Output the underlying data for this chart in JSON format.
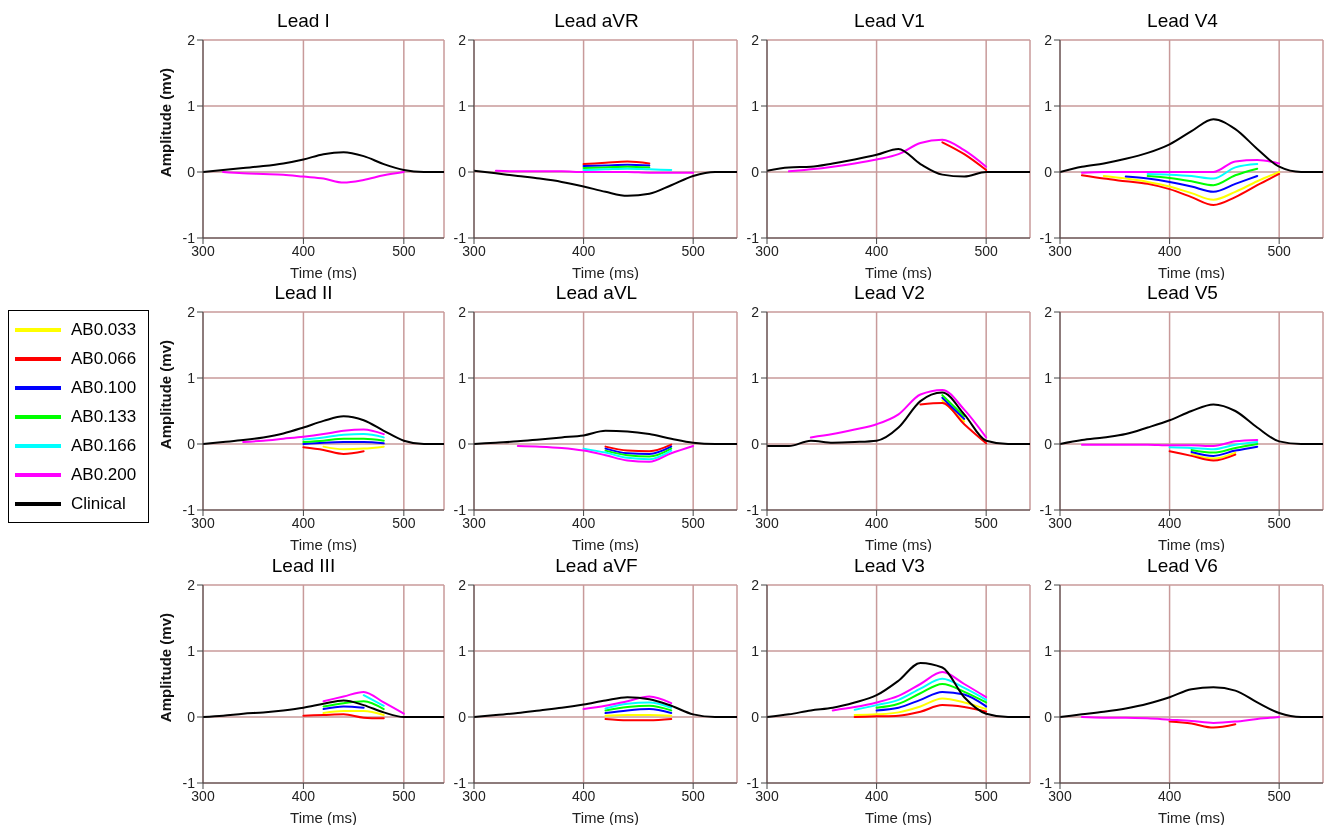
{
  "chart_data": [
    {
      "type": "line",
      "title": "Lead I",
      "xlabel": "Time (ms)",
      "ylabel": "Amplitude (mv)",
      "x": [
        300,
        320,
        340,
        360,
        380,
        400,
        420,
        440,
        460,
        480,
        500,
        520,
        540
      ],
      "xlim": [
        300,
        540
      ],
      "xticks": [
        300,
        400,
        500
      ],
      "ylim": [
        -1,
        2
      ],
      "yticks": [
        -1,
        0,
        1,
        2
      ],
      "grid": true,
      "legend": "left",
      "series": [
        {
          "name": "AB0.033",
          "color": "#ffff00",
          "values": [
            null,
            null,
            null,
            null,
            null,
            null,
            null,
            null,
            null,
            null,
            null,
            null,
            null
          ]
        },
        {
          "name": "AB0.066",
          "color": "#ff0000",
          "values": [
            null,
            null,
            null,
            null,
            null,
            null,
            null,
            null,
            null,
            null,
            null,
            null,
            null
          ]
        },
        {
          "name": "AB0.100",
          "color": "#0000ff",
          "values": [
            null,
            null,
            null,
            null,
            null,
            null,
            null,
            null,
            null,
            null,
            null,
            null,
            null
          ]
        },
        {
          "name": "AB0.133",
          "color": "#00ff00",
          "values": [
            null,
            null,
            null,
            null,
            null,
            null,
            null,
            null,
            null,
            null,
            null,
            null,
            null
          ]
        },
        {
          "name": "AB0.166",
          "color": "#00ffff",
          "values": [
            null,
            null,
            null,
            null,
            null,
            null,
            null,
            null,
            null,
            null,
            null,
            null,
            null
          ]
        },
        {
          "name": "AB0.200",
          "color": "#ff00ff",
          "values": [
            null,
            0,
            -0.02,
            -0.03,
            -0.04,
            -0.07,
            -0.1,
            -0.16,
            -0.12,
            -0.05,
            0,
            null,
            null
          ]
        },
        {
          "name": "Clinical",
          "color": "#000000",
          "values": [
            0,
            0.03,
            0.06,
            0.09,
            0.13,
            0.19,
            0.27,
            0.3,
            0.24,
            0.12,
            0.03,
            0,
            0
          ]
        }
      ]
    },
    {
      "type": "line",
      "title": "Lead aVR",
      "xlabel": "Time (ms)",
      "x": [
        300,
        320,
        340,
        360,
        380,
        400,
        420,
        440,
        460,
        480,
        500,
        520,
        540
      ],
      "xlim": [
        300,
        540
      ],
      "xticks": [
        300,
        400,
        500
      ],
      "ylim": [
        -1,
        2
      ],
      "yticks": [
        -1,
        0,
        1,
        2
      ],
      "grid": true,
      "series": [
        {
          "color": "#ffff00",
          "values": [
            null,
            null,
            null,
            null,
            null,
            null,
            null,
            null,
            null,
            null,
            null,
            null,
            null
          ]
        },
        {
          "color": "#ff0000",
          "values": [
            null,
            null,
            null,
            null,
            null,
            0.12,
            0.14,
            0.16,
            0.13,
            null,
            null,
            null,
            null
          ]
        },
        {
          "color": "#0000ff",
          "values": [
            null,
            null,
            null,
            null,
            null,
            0.09,
            0.1,
            0.11,
            0.1,
            null,
            null,
            null,
            null
          ]
        },
        {
          "color": "#00ff00",
          "values": [
            null,
            null,
            null,
            null,
            null,
            0.06,
            0.07,
            0.08,
            0.07,
            null,
            null,
            null,
            null
          ]
        },
        {
          "color": "#00ffff",
          "values": [
            null,
            null,
            null,
            null,
            null,
            0.03,
            0.04,
            0.05,
            0.04,
            0.03,
            null,
            null,
            null
          ]
        },
        {
          "color": "#ff00ff",
          "values": [
            null,
            0.02,
            0.01,
            0.01,
            0.01,
            0,
            0,
            0,
            -0.01,
            -0.01,
            -0.01,
            null,
            null
          ]
        },
        {
          "color": "#000000",
          "values": [
            0.02,
            -0.02,
            -0.06,
            -0.1,
            -0.15,
            -0.22,
            -0.3,
            -0.36,
            -0.33,
            -0.2,
            -0.06,
            0,
            0
          ]
        }
      ]
    },
    {
      "type": "line",
      "title": "Lead V1",
      "xlabel": "Time (ms)",
      "x": [
        300,
        320,
        340,
        360,
        380,
        400,
        420,
        440,
        460,
        480,
        500,
        520,
        540
      ],
      "xlim": [
        300,
        540
      ],
      "xticks": [
        300,
        400,
        500
      ],
      "ylim": [
        -1,
        2
      ],
      "yticks": [
        -1,
        0,
        1,
        2
      ],
      "grid": true,
      "series": [
        {
          "color": "#ffff00",
          "values": [
            null,
            null,
            null,
            null,
            null,
            null,
            null,
            null,
            null,
            null,
            null,
            null,
            null
          ]
        },
        {
          "color": "#ff0000",
          "values": [
            null,
            null,
            null,
            null,
            null,
            null,
            null,
            null,
            0.45,
            0.27,
            0.03,
            null,
            null
          ]
        },
        {
          "color": "#0000ff",
          "values": [
            null,
            null,
            null,
            null,
            null,
            null,
            null,
            null,
            null,
            null,
            null,
            null,
            null
          ]
        },
        {
          "color": "#00ff00",
          "values": [
            null,
            null,
            null,
            null,
            null,
            null,
            null,
            null,
            null,
            null,
            null,
            null,
            null
          ]
        },
        {
          "color": "#00ffff",
          "values": [
            null,
            null,
            null,
            null,
            null,
            null,
            null,
            null,
            null,
            null,
            null,
            null,
            null
          ]
        },
        {
          "color": "#ff00ff",
          "values": [
            null,
            0.01,
            0.04,
            0.08,
            0.13,
            0.19,
            0.27,
            0.44,
            0.49,
            0.33,
            0.08,
            null,
            null
          ]
        },
        {
          "color": "#000000",
          "values": [
            0.02,
            0.07,
            0.08,
            0.13,
            0.19,
            0.26,
            0.35,
            0.12,
            -0.04,
            -0.07,
            0,
            0,
            0
          ]
        }
      ]
    },
    {
      "type": "line",
      "title": "Lead V4",
      "xlabel": "Time (ms)",
      "x": [
        300,
        320,
        340,
        360,
        380,
        400,
        420,
        440,
        460,
        480,
        500,
        520,
        540
      ],
      "xlim": [
        300,
        540
      ],
      "xticks": [
        300,
        400,
        500
      ],
      "ylim": [
        -1,
        2
      ],
      "yticks": [
        -1,
        0,
        1,
        2
      ],
      "grid": true,
      "series": [
        {
          "color": "#ffff00",
          "values": [
            null,
            null,
            -0.06,
            -0.1,
            -0.15,
            -0.22,
            -0.32,
            -0.42,
            -0.3,
            -0.14,
            0,
            null,
            null
          ]
        },
        {
          "color": "#ff0000",
          "values": [
            null,
            -0.05,
            -0.1,
            -0.14,
            -0.18,
            -0.26,
            -0.38,
            -0.5,
            -0.38,
            -0.2,
            -0.03,
            null,
            null
          ]
        },
        {
          "color": "#0000ff",
          "values": [
            null,
            null,
            null,
            -0.07,
            -0.1,
            -0.15,
            -0.22,
            -0.3,
            -0.18,
            -0.06,
            null,
            null,
            null
          ]
        },
        {
          "color": "#00ff00",
          "values": [
            null,
            null,
            null,
            null,
            -0.06,
            -0.09,
            -0.14,
            -0.2,
            -0.05,
            0.05,
            null,
            null,
            null
          ]
        },
        {
          "color": "#00ffff",
          "values": [
            null,
            null,
            null,
            null,
            -0.03,
            -0.04,
            -0.06,
            -0.1,
            0.07,
            0.12,
            null,
            null,
            null
          ]
        },
        {
          "color": "#ff00ff",
          "values": [
            null,
            -0.01,
            0,
            0,
            0,
            0,
            0,
            0,
            0.16,
            0.18,
            0.13,
            null,
            null
          ]
        },
        {
          "color": "#000000",
          "values": [
            0,
            0.08,
            0.13,
            0.2,
            0.29,
            0.42,
            0.62,
            0.8,
            0.65,
            0.35,
            0.08,
            0,
            0
          ]
        }
      ]
    },
    {
      "type": "line",
      "title": "Lead II",
      "xlabel": "Time (ms)",
      "ylabel": "Amplitude (mv)",
      "x": [
        300,
        320,
        340,
        360,
        380,
        400,
        420,
        440,
        460,
        480,
        500,
        520,
        540
      ],
      "xlim": [
        300,
        540
      ],
      "xticks": [
        300,
        400,
        500
      ],
      "ylim": [
        -1,
        2
      ],
      "yticks": [
        -1,
        0,
        1,
        2
      ],
      "grid": true,
      "series": [
        {
          "color": "#ffff00",
          "values": [
            null,
            null,
            null,
            null,
            null,
            null,
            -0.04,
            -0.08,
            -0.07,
            -0.04,
            null,
            null,
            null
          ]
        },
        {
          "color": "#ff0000",
          "values": [
            null,
            null,
            null,
            null,
            null,
            -0.05,
            -0.09,
            -0.15,
            -0.11,
            null,
            null,
            null,
            null
          ]
        },
        {
          "color": "#0000ff",
          "values": [
            null,
            null,
            null,
            null,
            null,
            0,
            0.02,
            0.03,
            0.03,
            0.01,
            null,
            null,
            null
          ]
        },
        {
          "color": "#00ff00",
          "values": [
            null,
            null,
            null,
            null,
            null,
            0.03,
            0.05,
            0.08,
            0.08,
            0.05,
            null,
            null,
            null
          ]
        },
        {
          "color": "#00ffff",
          "values": [
            null,
            null,
            null,
            null,
            null,
            0.07,
            0.1,
            0.14,
            0.15,
            0.1,
            null,
            null,
            null
          ]
        },
        {
          "color": "#ff00ff",
          "values": [
            null,
            null,
            0.03,
            0.05,
            0.08,
            0.11,
            0.15,
            0.2,
            0.22,
            0.15,
            null,
            null,
            null
          ]
        },
        {
          "color": "#000000",
          "values": [
            0,
            0.03,
            0.06,
            0.1,
            0.16,
            0.25,
            0.35,
            0.42,
            0.36,
            0.2,
            0.05,
            0,
            0
          ]
        }
      ]
    },
    {
      "type": "line",
      "title": "Lead aVL",
      "xlabel": "Time (ms)",
      "x": [
        300,
        320,
        340,
        360,
        380,
        400,
        420,
        440,
        460,
        480,
        500,
        520,
        540
      ],
      "xlim": [
        300,
        540
      ],
      "xticks": [
        300,
        400,
        500
      ],
      "ylim": [
        -1,
        2
      ],
      "yticks": [
        -1,
        0,
        1,
        2
      ],
      "grid": true,
      "series": [
        {
          "color": "#ffff00",
          "values": [
            null,
            null,
            null,
            null,
            null,
            null,
            null,
            null,
            null,
            null,
            null,
            null,
            null
          ]
        },
        {
          "color": "#ff0000",
          "values": [
            null,
            null,
            null,
            null,
            null,
            null,
            -0.04,
            -0.1,
            -0.11,
            -0.01,
            null,
            null,
            null
          ]
        },
        {
          "color": "#0000ff",
          "values": [
            null,
            null,
            null,
            null,
            null,
            null,
            -0.07,
            -0.14,
            -0.15,
            -0.04,
            null,
            null,
            null
          ]
        },
        {
          "color": "#00ff00",
          "values": [
            null,
            null,
            null,
            null,
            null,
            null,
            -0.1,
            -0.17,
            -0.19,
            -0.07,
            null,
            null,
            null
          ]
        },
        {
          "color": "#00ffff",
          "values": [
            null,
            null,
            null,
            null,
            null,
            -0.07,
            -0.13,
            -0.21,
            -0.23,
            -0.1,
            null,
            null,
            null
          ]
        },
        {
          "color": "#ff00ff",
          "values": [
            null,
            null,
            -0.03,
            -0.04,
            -0.06,
            -0.1,
            -0.17,
            -0.25,
            -0.27,
            -0.14,
            -0.03,
            null,
            null
          ]
        },
        {
          "color": "#000000",
          "values": [
            0,
            0.02,
            0.04,
            0.07,
            0.1,
            0.13,
            0.2,
            0.19,
            0.15,
            0.08,
            0.02,
            0,
            0
          ]
        }
      ]
    },
    {
      "type": "line",
      "title": "Lead V2",
      "xlabel": "Time (ms)",
      "x": [
        300,
        320,
        340,
        360,
        380,
        400,
        420,
        440,
        460,
        480,
        500,
        520,
        540
      ],
      "xlim": [
        300,
        540
      ],
      "xticks": [
        300,
        400,
        500
      ],
      "ylim": [
        -1,
        2
      ],
      "yticks": [
        -1,
        0,
        1,
        2
      ],
      "grid": true,
      "series": [
        {
          "color": "#ffff00",
          "values": [
            null,
            null,
            null,
            null,
            null,
            null,
            null,
            null,
            0.66,
            0.34,
            null,
            null,
            null
          ]
        },
        {
          "color": "#ff0000",
          "values": [
            null,
            null,
            null,
            null,
            null,
            null,
            null,
            0.6,
            0.62,
            0.3,
            0.01,
            null,
            null
          ]
        },
        {
          "color": "#0000ff",
          "values": [
            null,
            null,
            null,
            null,
            null,
            null,
            null,
            null,
            0.7,
            0.38,
            null,
            null,
            null
          ]
        },
        {
          "color": "#00ff00",
          "values": [
            null,
            null,
            null,
            null,
            null,
            null,
            null,
            null,
            0.74,
            0.42,
            null,
            null,
            null
          ]
        },
        {
          "color": "#00ffff",
          "values": [
            null,
            null,
            null,
            null,
            null,
            null,
            null,
            null,
            null,
            null,
            null,
            null,
            null
          ]
        },
        {
          "color": "#ff00ff",
          "values": [
            null,
            null,
            0.1,
            0.15,
            0.22,
            0.3,
            0.45,
            0.75,
            0.82,
            0.52,
            0.1,
            null,
            null
          ]
        },
        {
          "color": "#000000",
          "values": [
            -0.03,
            -0.03,
            0.05,
            0.02,
            0.03,
            0.05,
            0.25,
            0.65,
            0.78,
            0.45,
            0.05,
            0,
            0
          ]
        }
      ]
    },
    {
      "type": "line",
      "title": "Lead V5",
      "xlabel": "Time (ms)",
      "x": [
        300,
        320,
        340,
        360,
        380,
        400,
        420,
        440,
        460,
        480,
        500,
        520,
        540
      ],
      "xlim": [
        300,
        540
      ],
      "xticks": [
        300,
        400,
        500
      ],
      "ylim": [
        -1,
        2
      ],
      "yticks": [
        -1,
        0,
        1,
        2
      ],
      "grid": true,
      "series": [
        {
          "color": "#ffff00",
          "values": [
            null,
            null,
            null,
            null,
            null,
            null,
            -0.15,
            -0.22,
            -0.13,
            null,
            null,
            null,
            null
          ]
        },
        {
          "color": "#ff0000",
          "values": [
            null,
            null,
            null,
            null,
            null,
            -0.11,
            -0.18,
            -0.25,
            -0.16,
            null,
            null,
            null,
            null
          ]
        },
        {
          "color": "#0000ff",
          "values": [
            null,
            null,
            null,
            null,
            null,
            null,
            -0.12,
            -0.18,
            -0.1,
            -0.04,
            null,
            null,
            null
          ]
        },
        {
          "color": "#00ff00",
          "values": [
            null,
            null,
            null,
            null,
            null,
            null,
            -0.09,
            -0.13,
            -0.06,
            0,
            null,
            null,
            null
          ]
        },
        {
          "color": "#00ffff",
          "values": [
            null,
            null,
            null,
            null,
            null,
            -0.05,
            -0.06,
            -0.08,
            -0.01,
            0.03,
            null,
            null,
            null
          ]
        },
        {
          "color": "#ff00ff",
          "values": [
            null,
            -0.01,
            -0.01,
            -0.01,
            -0.01,
            -0.02,
            -0.02,
            -0.03,
            0.04,
            0.06,
            null,
            null,
            null
          ]
        },
        {
          "color": "#000000",
          "values": [
            0,
            0.06,
            0.1,
            0.15,
            0.25,
            0.36,
            0.5,
            0.6,
            0.5,
            0.25,
            0.04,
            0,
            0
          ]
        }
      ]
    },
    {
      "type": "line",
      "title": "Lead III",
      "xlabel": "Time (ms)",
      "ylabel": "Amplitude (mv)",
      "x": [
        300,
        320,
        340,
        360,
        380,
        400,
        420,
        440,
        460,
        480,
        500,
        520,
        540
      ],
      "xlim": [
        300,
        540
      ],
      "xticks": [
        300,
        400,
        500
      ],
      "ylim": [
        -1,
        2
      ],
      "yticks": [
        -1,
        0,
        1,
        2
      ],
      "grid": true,
      "series": [
        {
          "color": "#ffff00",
          "values": [
            null,
            null,
            null,
            null,
            null,
            null,
            0.06,
            0.09,
            0.09,
            0.03,
            null,
            null,
            null
          ]
        },
        {
          "color": "#ff0000",
          "values": [
            null,
            null,
            null,
            null,
            null,
            0.02,
            0.03,
            0.04,
            -0.01,
            -0.02,
            null,
            null,
            null
          ]
        },
        {
          "color": "#0000ff",
          "values": [
            null,
            null,
            null,
            null,
            null,
            null,
            0.12,
            0.16,
            0.14,
            null,
            null,
            null,
            null
          ]
        },
        {
          "color": "#00ff00",
          "values": [
            null,
            null,
            null,
            null,
            null,
            null,
            0.16,
            0.21,
            0.24,
            0.12,
            null,
            null,
            null
          ]
        },
        {
          "color": "#00ffff",
          "values": [
            null,
            null,
            null,
            null,
            null,
            null,
            null,
            null,
            0.33,
            0.17,
            null,
            null,
            null
          ]
        },
        {
          "color": "#ff00ff",
          "values": [
            null,
            null,
            null,
            null,
            null,
            null,
            0.24,
            0.31,
            0.38,
            0.22,
            0.05,
            null,
            null
          ]
        },
        {
          "color": "#000000",
          "values": [
            0,
            0.02,
            0.05,
            0.07,
            0.1,
            0.14,
            0.2,
            0.25,
            0.18,
            0.07,
            0,
            0,
            0
          ]
        }
      ]
    },
    {
      "type": "line",
      "title": "Lead aVF",
      "xlabel": "Time (ms)",
      "x": [
        300,
        320,
        340,
        360,
        380,
        400,
        420,
        440,
        460,
        480,
        500,
        520,
        540
      ],
      "xlim": [
        300,
        540
      ],
      "xticks": [
        300,
        400,
        500
      ],
      "ylim": [
        -1,
        2
      ],
      "yticks": [
        -1,
        0,
        1,
        2
      ],
      "grid": true,
      "series": [
        {
          "color": "#ffff00",
          "values": [
            null,
            null,
            null,
            null,
            null,
            null,
            0.02,
            0.03,
            0.03,
            0.02,
            null,
            null,
            null
          ]
        },
        {
          "color": "#ff0000",
          "values": [
            null,
            null,
            null,
            null,
            null,
            null,
            -0.03,
            -0.05,
            -0.05,
            -0.03,
            null,
            null,
            null
          ]
        },
        {
          "color": "#0000ff",
          "values": [
            null,
            null,
            null,
            null,
            null,
            null,
            0.06,
            0.1,
            0.12,
            0.06,
            null,
            null,
            null
          ]
        },
        {
          "color": "#00ff00",
          "values": [
            null,
            null,
            null,
            null,
            null,
            null,
            0.1,
            0.15,
            0.17,
            0.1,
            null,
            null,
            null
          ]
        },
        {
          "color": "#00ffff",
          "values": [
            null,
            null,
            null,
            null,
            null,
            null,
            0.13,
            0.2,
            0.22,
            0.14,
            null,
            null,
            null
          ]
        },
        {
          "color": "#ff00ff",
          "values": [
            null,
            null,
            null,
            null,
            null,
            0.12,
            0.17,
            0.24,
            0.31,
            0.21,
            null,
            null,
            null
          ]
        },
        {
          "color": "#000000",
          "values": [
            0,
            0.03,
            0.06,
            0.1,
            0.14,
            0.19,
            0.25,
            0.3,
            0.27,
            0.17,
            0.04,
            0,
            0
          ]
        }
      ]
    },
    {
      "type": "line",
      "title": "Lead V3",
      "xlabel": "Time (ms)",
      "x": [
        300,
        320,
        340,
        360,
        380,
        400,
        420,
        440,
        460,
        480,
        500,
        520,
        540
      ],
      "xlim": [
        300,
        540
      ],
      "xticks": [
        300,
        400,
        500
      ],
      "ylim": [
        -1,
        2
      ],
      "yticks": [
        -1,
        0,
        1,
        2
      ],
      "grid": true,
      "series": [
        {
          "color": "#ffff00",
          "values": [
            null,
            null,
            null,
            null,
            0.03,
            0.04,
            0.07,
            0.16,
            0.28,
            0.22,
            0.12,
            null,
            null
          ]
        },
        {
          "color": "#ff0000",
          "values": [
            null,
            null,
            null,
            null,
            0,
            0.01,
            0.02,
            0.08,
            0.18,
            0.15,
            0.08,
            null,
            null
          ]
        },
        {
          "color": "#0000ff",
          "values": [
            null,
            null,
            null,
            null,
            null,
            0.1,
            0.14,
            0.26,
            0.38,
            0.34,
            0.16,
            null,
            null
          ]
        },
        {
          "color": "#00ff00",
          "values": [
            null,
            null,
            null,
            null,
            null,
            0.14,
            0.2,
            0.36,
            0.5,
            0.38,
            0.22,
            null,
            null
          ]
        },
        {
          "color": "#00ffff",
          "values": [
            null,
            null,
            null,
            null,
            0.11,
            0.18,
            0.26,
            0.43,
            0.58,
            0.44,
            0.26,
            null,
            null
          ]
        },
        {
          "color": "#ff00ff",
          "values": [
            null,
            null,
            null,
            0.1,
            0.15,
            0.22,
            0.32,
            0.5,
            0.68,
            0.5,
            0.3,
            null,
            null
          ]
        },
        {
          "color": "#000000",
          "values": [
            0,
            0.04,
            0.1,
            0.14,
            0.22,
            0.33,
            0.55,
            0.82,
            0.75,
            0.3,
            0.05,
            0,
            0
          ]
        }
      ]
    },
    {
      "type": "line",
      "title": "Lead V6",
      "xlabel": "Time (ms)",
      "x": [
        300,
        320,
        340,
        360,
        380,
        400,
        420,
        440,
        460,
        480,
        500,
        520,
        540
      ],
      "xlim": [
        300,
        540
      ],
      "xticks": [
        300,
        400,
        500
      ],
      "ylim": [
        -1,
        2
      ],
      "yticks": [
        -1,
        0,
        1,
        2
      ],
      "grid": true,
      "series": [
        {
          "color": "#ffff00",
          "values": [
            null,
            null,
            null,
            null,
            null,
            null,
            null,
            null,
            null,
            null,
            null,
            null,
            null
          ]
        },
        {
          "color": "#ff0000",
          "values": [
            null,
            null,
            null,
            null,
            null,
            -0.07,
            -0.1,
            -0.16,
            -0.11,
            null,
            null,
            null,
            null
          ]
        },
        {
          "color": "#0000ff",
          "values": [
            null,
            null,
            null,
            null,
            null,
            null,
            null,
            null,
            null,
            null,
            null,
            null,
            null
          ]
        },
        {
          "color": "#00ff00",
          "values": [
            null,
            null,
            null,
            null,
            null,
            null,
            null,
            null,
            null,
            null,
            null,
            null,
            null
          ]
        },
        {
          "color": "#00ffff",
          "values": [
            null,
            null,
            null,
            null,
            null,
            null,
            null,
            null,
            null,
            null,
            null,
            null,
            null
          ]
        },
        {
          "color": "#ff00ff",
          "values": [
            null,
            0,
            -0.01,
            -0.01,
            -0.02,
            -0.04,
            -0.06,
            -0.09,
            -0.07,
            -0.03,
            0,
            null,
            null
          ]
        },
        {
          "color": "#000000",
          "values": [
            0,
            0.04,
            0.08,
            0.13,
            0.2,
            0.3,
            0.42,
            0.45,
            0.4,
            0.22,
            0.06,
            0,
            0
          ]
        }
      ]
    }
  ]
}
